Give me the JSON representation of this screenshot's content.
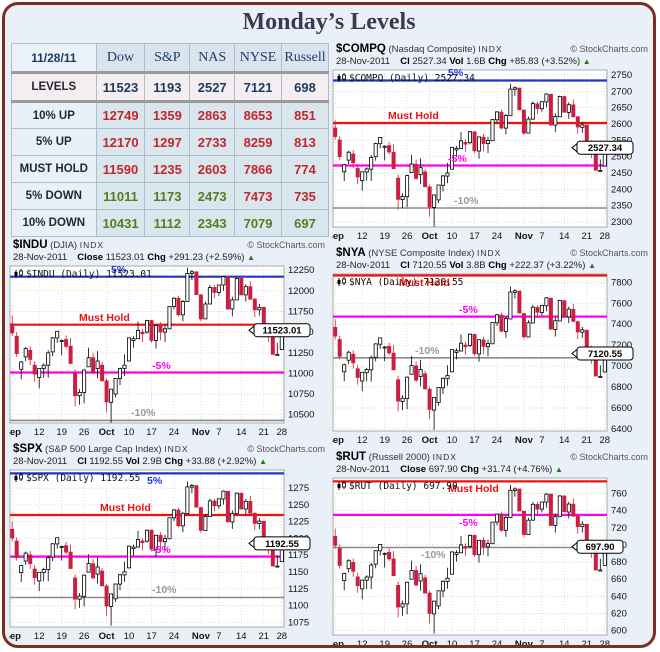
{
  "page": {
    "title": "Monday’s Levels"
  },
  "colors": {
    "border": "#7a2f1f",
    "background": "#e9f0f8",
    "table_navy": "#1b3a5c",
    "table_red": "#c0282d",
    "table_green": "#567d1e",
    "line_blue": "#2233cc",
    "line_red": "#ee1111",
    "line_magenta": "#ff00ee",
    "line_gray": "#8a8a8a",
    "candle_down": "#cc1f3f",
    "candle_up": "#ffffff",
    "arrow_green": "#1f7a1f"
  },
  "table": {
    "date": "11/28/11",
    "columns": [
      "Dow",
      "S&P",
      "NAS",
      "NYSE",
      "Russell"
    ],
    "rows": [
      {
        "label": "LEVELS",
        "values": [
          "11523",
          "1193",
          "2527",
          "7121",
          "698"
        ],
        "colors": [
          "navy",
          "navy",
          "navy",
          "navy",
          "navy"
        ]
      },
      {
        "label": "10% UP",
        "values": [
          "12749",
          "1359",
          "2863",
          "8653",
          "851"
        ],
        "colors": [
          "red",
          "red",
          "red",
          "red",
          "red"
        ]
      },
      {
        "label": "5% UP",
        "values": [
          "12170",
          "1297",
          "2733",
          "8259",
          "813"
        ],
        "colors": [
          "red",
          "red",
          "red",
          "red",
          "red"
        ]
      },
      {
        "label": "MUST HOLD",
        "values": [
          "11590",
          "1235",
          "2603",
          "7866",
          "774"
        ],
        "colors": [
          "red",
          "red",
          "red",
          "red",
          "red"
        ]
      },
      {
        "label": "5% DOWN",
        "values": [
          "11011",
          "1173",
          "2473",
          "7473",
          "735"
        ],
        "colors": [
          "green",
          "green",
          "green",
          "red",
          "red"
        ]
      },
      {
        "label": "10% DOWN",
        "values": [
          "10431",
          "1112",
          "2343",
          "7079",
          "697"
        ],
        "colors": [
          "green",
          "green",
          "green",
          "green",
          "green"
        ]
      }
    ]
  },
  "chart_data": {
    "type": "candlestick",
    "x_axis": {
      "ticks": [
        {
          "i": 0,
          "t": "Sep"
        },
        {
          "i": 6,
          "t": "12"
        },
        {
          "i": 11,
          "t": "19"
        },
        {
          "i": 16,
          "t": "26"
        },
        {
          "i": 21,
          "t": "Oct"
        },
        {
          "i": 26,
          "t": "10"
        },
        {
          "i": 31,
          "t": "17"
        },
        {
          "i": 36,
          "t": "24"
        },
        {
          "i": 42,
          "t": "Nov"
        },
        {
          "i": 46,
          "t": "7"
        },
        {
          "i": 51,
          "t": "14"
        },
        {
          "i": 56,
          "t": "21"
        },
        {
          "i": 60,
          "t": "28"
        }
      ]
    },
    "pattern_norm": [
      [
        0.632,
        0.684,
        0.553,
        0.574
      ],
      [
        0.553,
        0.579,
        0.421,
        0.442
      ],
      [
        0.342,
        0.395,
        0.279,
        0.389
      ],
      [
        0.421,
        0.484,
        0.395,
        0.474
      ],
      [
        0.463,
        0.489,
        0.368,
        0.405
      ],
      [
        0.368,
        0.395,
        0.263,
        0.311
      ],
      [
        0.289,
        0.347,
        0.221,
        0.347
      ],
      [
        0.347,
        0.379,
        0.289,
        0.368
      ],
      [
        0.368,
        0.463,
        0.289,
        0.447
      ],
      [
        0.453,
        0.547,
        0.426,
        0.542
      ],
      [
        0.542,
        0.584,
        0.511,
        0.584
      ],
      [
        0.526,
        0.532,
        0.432,
        0.526
      ],
      [
        0.532,
        0.558,
        0.474,
        0.489
      ],
      [
        0.489,
        0.542,
        0.379,
        0.379
      ],
      [
        0.316,
        0.342,
        0.105,
        0.174
      ],
      [
        0.174,
        0.216,
        0.116,
        0.195
      ],
      [
        0.195,
        0.342,
        0.126,
        0.337
      ],
      [
        0.358,
        0.479,
        0.358,
        0.416
      ],
      [
        0.416,
        0.447,
        0.311,
        0.321
      ],
      [
        0.347,
        0.458,
        0.284,
        0.395
      ],
      [
        0.368,
        0.389,
        0.268,
        0.268
      ],
      [
        0.268,
        0.284,
        0.068,
        0.134
      ],
      [
        0.132,
        0.216,
        0.002,
        0.216
      ],
      [
        0.184,
        0.284,
        0.163,
        0.284
      ],
      [
        0.284,
        0.353,
        0.242,
        0.347
      ],
      [
        0.347,
        0.437,
        0.3,
        0.368
      ],
      [
        0.395,
        0.542,
        0.395,
        0.542
      ],
      [
        0.526,
        0.553,
        0.479,
        0.537
      ],
      [
        0.537,
        0.647,
        0.537,
        0.589
      ],
      [
        0.579,
        0.6,
        0.516,
        0.568
      ],
      [
        0.579,
        0.658,
        0.568,
        0.653
      ],
      [
        0.653,
        0.658,
        0.511,
        0.526
      ],
      [
        0.526,
        0.621,
        0.474,
        0.621
      ],
      [
        0.621,
        0.642,
        0.526,
        0.579
      ],
      [
        0.579,
        0.626,
        0.516,
        0.6
      ],
      [
        0.6,
        0.742,
        0.6,
        0.742
      ],
      [
        0.742,
        0.8,
        0.721,
        0.795
      ],
      [
        0.795,
        0.811,
        0.679,
        0.689
      ],
      [
        0.689,
        0.784,
        0.647,
        0.774
      ],
      [
        0.774,
        0.989,
        0.774,
        0.953
      ],
      [
        0.953,
        0.974,
        0.911,
        0.963
      ],
      [
        0.963,
        0.963,
        0.816,
        0.818
      ],
      [
        0.816,
        0.821,
        0.647,
        0.663
      ],
      [
        0.663,
        0.774,
        0.663,
        0.758
      ],
      [
        0.758,
        0.879,
        0.758,
        0.863
      ],
      [
        0.863,
        0.879,
        0.795,
        0.832
      ],
      [
        0.832,
        0.879,
        0.811,
        0.879
      ],
      [
        0.879,
        0.937,
        0.842,
        0.932
      ],
      [
        0.932,
        0.932,
        0.721,
        0.726
      ],
      [
        0.726,
        0.805,
        0.679,
        0.784
      ],
      [
        0.784,
        0.926,
        0.784,
        0.921
      ],
      [
        0.921,
        0.926,
        0.816,
        0.816
      ],
      [
        0.816,
        0.884,
        0.774,
        0.868
      ],
      [
        0.868,
        0.905,
        0.784,
        0.789
      ],
      [
        0.789,
        0.795,
        0.674,
        0.721
      ],
      [
        0.721,
        0.758,
        0.684,
        0.737
      ],
      [
        0.737,
        0.737,
        0.553,
        0.605
      ],
      [
        0.605,
        0.637,
        0.516,
        0.574
      ],
      [
        0.574,
        0.574,
        0.437,
        0.437
      ],
      [
        0.437,
        0.511,
        0.437,
        0.437
      ],
      [
        0.468,
        0.611,
        0.468,
        0.591
      ]
    ],
    "charts": [
      {
        "id": "compq",
        "column": "right",
        "symbol": "$COMPQ",
        "name": " (Nasdaq Composite) ",
        "exchange": "INDX",
        "credit": "© StockCharts.com",
        "date": "28-Nov-2011",
        "info": [
          {
            "label": "Cl",
            "value": "2527.34"
          },
          {
            "label": "Vol",
            "value": "1.6B"
          },
          {
            "label": "Chg",
            "value": "+85.83 (+3.52%)"
          }
        ],
        "overlay": "$COMPQ (Daily) 2527.34",
        "close": 2527.34,
        "price_label": "2527.34",
        "ylim": [
          2285,
          2765
        ],
        "yticks": [
          2300,
          2350,
          2400,
          2450,
          2500,
          2550,
          2600,
          2650,
          2700,
          2750
        ],
        "pmin": 2300,
        "pmax": 2755,
        "levels": [
          {
            "label": "5%",
            "value": 2733,
            "color": "blue",
            "lx": 0.42,
            "side": "above"
          },
          {
            "label": "Must Hold",
            "value": 2603,
            "color": "red",
            "lx": 0.2,
            "side": "above"
          },
          {
            "label": "-5%",
            "value": 2473,
            "color": "magenta",
            "lx": 0.42,
            "side": "above"
          },
          {
            "label": "-10%",
            "value": 2343,
            "color": "gray",
            "lx": 0.44,
            "side": "above"
          }
        ]
      },
      {
        "id": "indu",
        "column": "left",
        "symbol": "$INDU",
        "name": " (DJIA) ",
        "exchange": "INDX",
        "credit": "© StockCharts.com",
        "date": "28-Nov-2011",
        "info": [
          {
            "label": "Close",
            "value": "11523.01"
          },
          {
            "label": "Chg",
            "value": "+291.23 (+2.59%)"
          }
        ],
        "overlay": "$INDU (Daily) 11523.01",
        "close": 11523.01,
        "price_label": "11523.01",
        "ylim": [
          10400,
          12300
        ],
        "yticks": [
          10500,
          10750,
          11000,
          11250,
          11500,
          11750,
          12000,
          12250
        ],
        "pmin": 10400,
        "pmax": 12300,
        "levels": [
          {
            "label": "5%",
            "value": 12170,
            "color": "blue",
            "lx": 0.37,
            "side": "above"
          },
          {
            "label": "Must Hold",
            "value": 11590,
            "color": "red",
            "lx": 0.25,
            "side": "above"
          },
          {
            "label": "-5%",
            "value": 11011,
            "color": "magenta",
            "lx": 0.52,
            "side": "above"
          },
          {
            "label": "-10%",
            "value": 10431,
            "color": "gray",
            "lx": 0.44,
            "side": "above"
          }
        ]
      },
      {
        "id": "nya",
        "column": "right",
        "symbol": "$NYA",
        "name": " (NYSE Composite Index) ",
        "exchange": "INDX",
        "credit": "© StockCharts.com",
        "date": "28-Nov-2011",
        "info": [
          {
            "label": "Cl",
            "value": "7120.55"
          },
          {
            "label": "Vol",
            "value": "3.8B"
          },
          {
            "label": "Chg",
            "value": "+222.37 (+3.22%)"
          }
        ],
        "overlay": "$NYA (Daily) 7120.55",
        "close": 7120.55,
        "price_label": "7120.55",
        "ylim": [
          6380,
          7880
        ],
        "yticks": [
          6400,
          6600,
          6800,
          7000,
          7200,
          7400,
          7600,
          7800
        ],
        "pmin": 6460,
        "pmax": 7900,
        "levels": [
          {
            "label": "Must Hold",
            "value": 7866,
            "color": "red",
            "lx": 0.24,
            "side": "below"
          },
          {
            "label": "-5%",
            "value": 7473,
            "color": "magenta",
            "lx": 0.46,
            "side": "above"
          },
          {
            "label": "-10%",
            "value": 7079,
            "color": "gray",
            "lx": 0.3,
            "side": "above"
          }
        ]
      },
      {
        "id": "spx",
        "column": "left",
        "symbol": "$SPX",
        "name": " (S&P 500 Large Cap Index) ",
        "exchange": "INDX",
        "credit": "© StockCharts.com",
        "date": "28-Nov-2011",
        "info": [
          {
            "label": "Cl",
            "value": "1192.55"
          },
          {
            "label": "Vol",
            "value": "2.9B"
          },
          {
            "label": "Chg",
            "value": "+33.88 (+2.92%)"
          }
        ],
        "overlay": "$SPX (Daily) 1192.55",
        "close": 1192.55,
        "price_label": "1192.55",
        "ylim": [
          1068,
          1302
        ],
        "yticks": [
          1075,
          1100,
          1125,
          1150,
          1175,
          1200,
          1225,
          1250,
          1275
        ],
        "pmin": 1074,
        "pmax": 1295,
        "levels": [
          {
            "label": "5%",
            "value": 1297,
            "color": "blue",
            "lx": 0.5,
            "side": "below"
          },
          {
            "label": "Must Hold",
            "value": 1235,
            "color": "red",
            "lx": 0.33,
            "side": "above"
          },
          {
            "label": "-5%",
            "value": 1173,
            "color": "magenta",
            "lx": 0.52,
            "side": "above"
          },
          {
            "label": "-10%",
            "value": 1112,
            "color": "gray",
            "lx": 0.52,
            "side": "above"
          }
        ]
      },
      {
        "id": "rut",
        "column": "right",
        "symbol": "$RUT",
        "name": " (Russell 2000) ",
        "exchange": "INDX",
        "credit": "© StockCharts.com",
        "date": "28-Nov-2011",
        "info": [
          {
            "label": "Close",
            "value": "697.90"
          },
          {
            "label": "Chg",
            "value": "+31.74 (+4.76%)"
          }
        ],
        "overlay": "$RUT (Daily) 697.90",
        "close": 697.9,
        "price_label": "697.90",
        "ylim": [
          595,
          778
        ],
        "yticks": [
          600,
          620,
          640,
          660,
          680,
          700,
          720,
          740,
          760
        ],
        "pmin": 598,
        "pmax": 775,
        "levels": [
          {
            "label": "Must Hold",
            "value": 774,
            "color": "red",
            "lx": 0.42,
            "side": "below"
          },
          {
            "label": "-5%",
            "value": 735,
            "color": "magenta",
            "lx": 0.46,
            "side": "below"
          },
          {
            "label": "-10%",
            "value": 697,
            "color": "gray",
            "lx": 0.32,
            "side": "below"
          }
        ]
      }
    ]
  }
}
